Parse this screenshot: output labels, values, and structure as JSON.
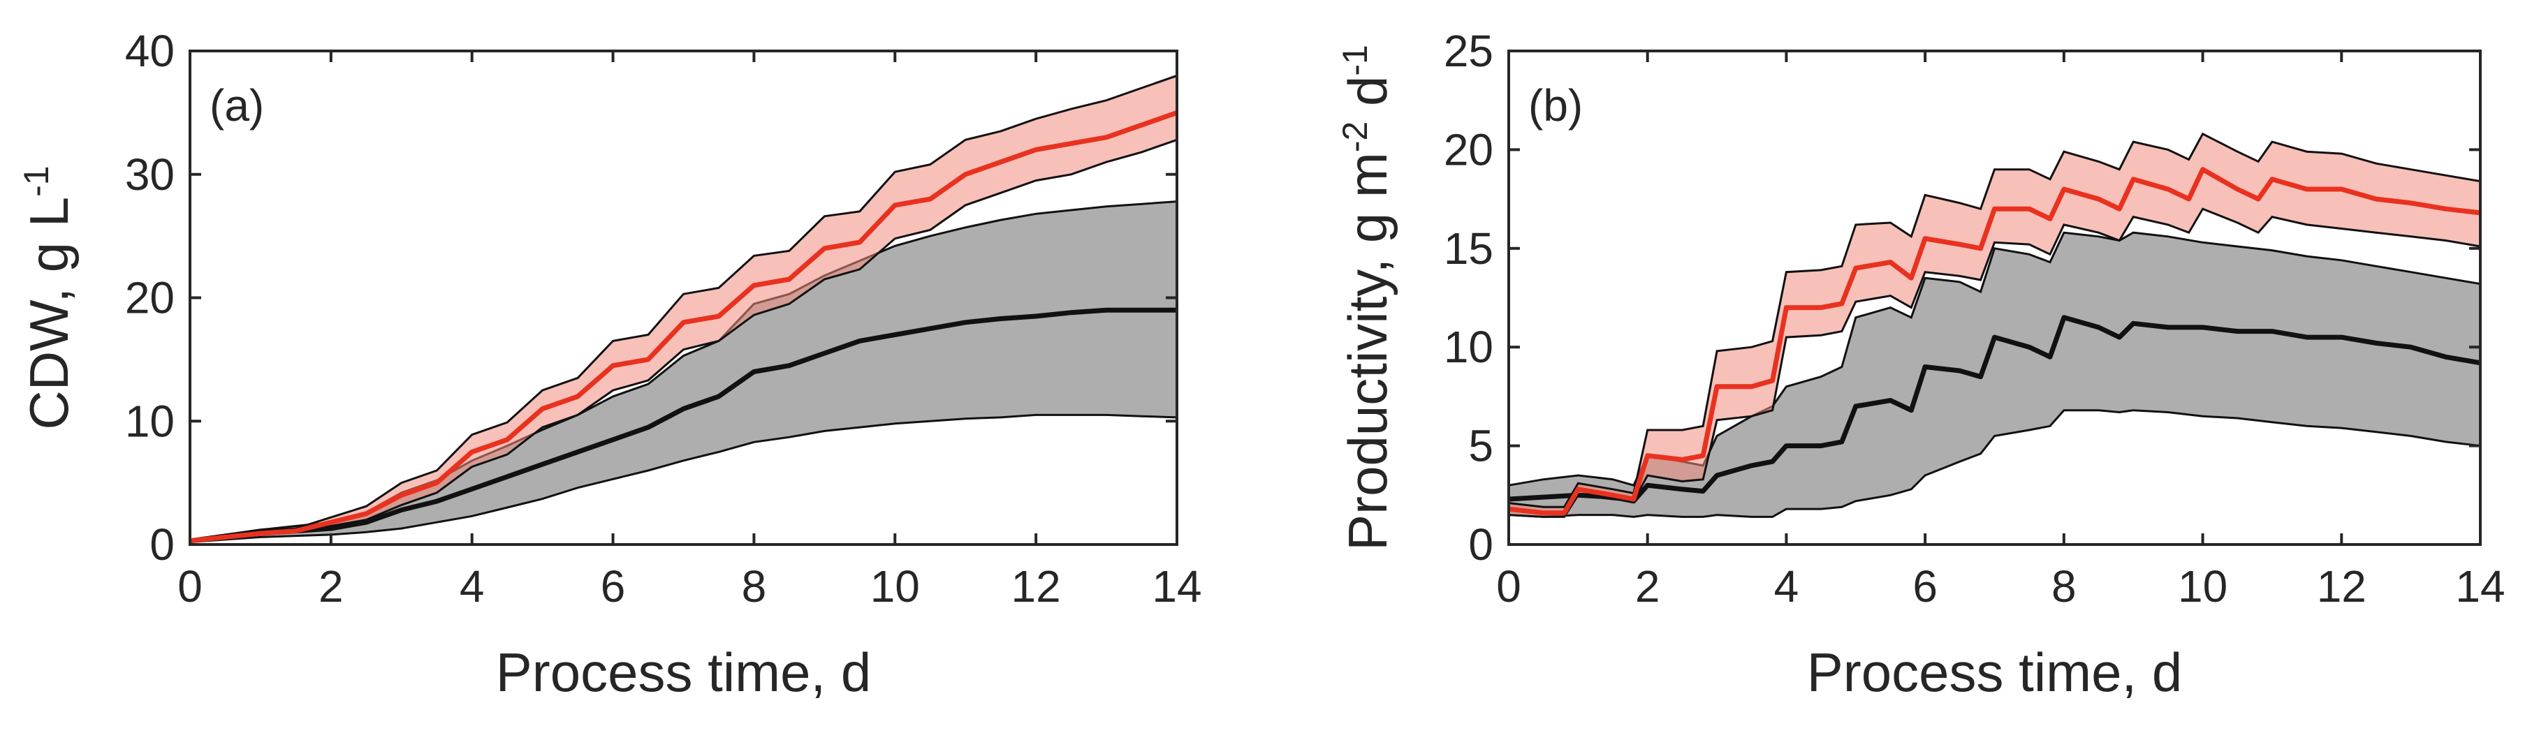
{
  "colors": {
    "red_line": "#e8321f",
    "red_band": "#f08d80",
    "black_line": "#111111",
    "grey_band": "#8c8c8c",
    "axis": "#262626"
  },
  "chart_data": [
    {
      "type": "line",
      "panel_label": "(a)",
      "xlabel": "Process time, d",
      "ylabel": {
        "base": "CDW, g L",
        "sup": "-1"
      },
      "xlim": [
        0,
        14
      ],
      "ylim": [
        0,
        40
      ],
      "x_ticks": [
        0,
        2,
        4,
        6,
        8,
        10,
        12,
        14
      ],
      "y_ticks": [
        0,
        10,
        20,
        30,
        40
      ],
      "grid": false,
      "legend": "none",
      "series": [
        {
          "name": "red",
          "x": [
            0,
            0.5,
            1,
            1.5,
            2,
            2.5,
            3,
            3.5,
            4,
            4.5,
            5,
            5.5,
            6,
            6.5,
            7,
            7.5,
            8,
            8.5,
            9,
            9.5,
            10,
            10.5,
            11,
            11.5,
            12,
            12.5,
            13,
            13.5,
            14
          ],
          "y": [
            0.3,
            0.6,
            0.9,
            1.1,
            1.8,
            2.5,
            4.0,
            5.0,
            7.5,
            8.5,
            11.0,
            12.0,
            14.5,
            15.0,
            18.0,
            18.5,
            21.0,
            21.5,
            24.0,
            24.5,
            27.5,
            28.0,
            30.0,
            31.0,
            32.0,
            32.5,
            33.0,
            34.0,
            35.0
          ],
          "lower": [
            0.2,
            0.5,
            0.8,
            1.0,
            1.5,
            2.0,
            3.2,
            4.2,
            6.3,
            7.3,
            9.5,
            10.5,
            12.5,
            13.3,
            15.8,
            16.5,
            18.6,
            19.5,
            21.5,
            22.3,
            24.8,
            25.5,
            27.5,
            28.5,
            29.5,
            30.0,
            31.0,
            31.8,
            32.8
          ],
          "upper": [
            0.4,
            0.7,
            1.1,
            1.3,
            2.2,
            3.1,
            5.0,
            6.0,
            8.9,
            9.9,
            12.5,
            13.5,
            16.5,
            17.0,
            20.3,
            20.8,
            23.4,
            23.8,
            26.6,
            27.0,
            30.2,
            30.8,
            32.8,
            33.5,
            34.5,
            35.3,
            36.0,
            37.0,
            38.0
          ]
        },
        {
          "name": "black",
          "x": [
            0,
            0.5,
            1,
            1.5,
            2,
            2.5,
            3,
            3.5,
            4,
            4.5,
            5,
            5.5,
            6,
            6.5,
            7,
            7.5,
            8,
            8.5,
            9,
            9.5,
            10,
            10.5,
            11,
            11.5,
            12,
            12.5,
            13,
            13.5,
            14
          ],
          "y": [
            0.3,
            0.6,
            0.9,
            1.1,
            1.3,
            1.8,
            2.8,
            3.5,
            4.5,
            5.5,
            6.5,
            7.5,
            8.5,
            9.5,
            11.0,
            12.0,
            14.0,
            14.5,
            15.5,
            16.5,
            17.0,
            17.5,
            18.0,
            18.3,
            18.5,
            18.8,
            19.0,
            19.0,
            19.0
          ],
          "lower": [
            0.2,
            0.4,
            0.6,
            0.7,
            0.8,
            1.0,
            1.3,
            1.8,
            2.3,
            3.0,
            3.7,
            4.6,
            5.3,
            6.0,
            6.8,
            7.5,
            8.3,
            8.7,
            9.2,
            9.5,
            9.8,
            10.0,
            10.2,
            10.3,
            10.5,
            10.5,
            10.5,
            10.4,
            10.3
          ],
          "upper": [
            0.4,
            0.8,
            1.2,
            1.5,
            1.8,
            2.6,
            4.2,
            5.2,
            6.8,
            8.0,
            9.3,
            10.5,
            12.0,
            13.0,
            15.3,
            16.5,
            19.5,
            20.3,
            21.8,
            23.0,
            24.2,
            25.0,
            25.7,
            26.3,
            26.8,
            27.1,
            27.4,
            27.6,
            27.8
          ]
        }
      ]
    },
    {
      "type": "line",
      "panel_label": "(b)",
      "xlabel": "Process time, d",
      "ylabel": {
        "base": "Productivity, g m",
        "sup1": "-2",
        "mid": " d",
        "sup2": "-1"
      },
      "xlim": [
        0,
        14
      ],
      "ylim": [
        0,
        25
      ],
      "x_ticks": [
        0,
        2,
        4,
        6,
        8,
        10,
        12,
        14
      ],
      "y_ticks": [
        0,
        5,
        10,
        15,
        20,
        25
      ],
      "grid": false,
      "legend": "none",
      "series": [
        {
          "name": "red",
          "x": [
            0,
            0.5,
            0.8,
            1,
            1.5,
            1.8,
            2,
            2.5,
            2.8,
            3,
            3.5,
            3.8,
            4,
            4.5,
            4.8,
            5,
            5.5,
            5.8,
            6,
            6.5,
            6.8,
            7,
            7.5,
            7.8,
            8,
            8.5,
            8.8,
            9,
            9.5,
            9.8,
            10,
            10.5,
            10.8,
            11,
            11.5,
            12,
            12.5,
            13,
            13.5,
            14
          ],
          "y": [
            1.8,
            1.6,
            1.6,
            2.8,
            2.5,
            2.3,
            4.5,
            4.3,
            4.5,
            8.0,
            8.0,
            8.3,
            12.0,
            12.0,
            12.2,
            14.0,
            14.3,
            13.5,
            15.5,
            15.2,
            15.0,
            17.0,
            17.0,
            16.5,
            18.0,
            17.5,
            17.0,
            18.5,
            18.0,
            17.5,
            19.0,
            18.0,
            17.5,
            18.5,
            18.0,
            18.0,
            17.5,
            17.3,
            17.0,
            16.8
          ],
          "lower": [
            1.5,
            1.4,
            1.4,
            2.5,
            2.3,
            2.2,
            3.5,
            3.2,
            3.3,
            6.3,
            6.5,
            6.8,
            10.5,
            10.6,
            10.8,
            12.3,
            12.6,
            12.0,
            13.8,
            13.6,
            13.4,
            15.3,
            15.2,
            14.7,
            16.2,
            15.8,
            15.4,
            16.6,
            16.2,
            15.8,
            17.0,
            16.3,
            15.8,
            16.6,
            16.2,
            16.0,
            15.8,
            15.6,
            15.4,
            15.1
          ],
          "upper": [
            2.1,
            1.9,
            1.9,
            3.1,
            2.8,
            2.6,
            5.8,
            5.8,
            6.0,
            9.8,
            10.0,
            10.3,
            13.8,
            13.9,
            14.1,
            16.2,
            16.3,
            15.6,
            17.7,
            17.3,
            17.0,
            19.0,
            19.0,
            18.5,
            19.9,
            19.4,
            19.0,
            20.4,
            20.0,
            19.5,
            20.8,
            19.9,
            19.4,
            20.4,
            19.9,
            19.8,
            19.3,
            19.0,
            18.7,
            18.4
          ]
        },
        {
          "name": "black",
          "x": [
            0,
            0.5,
            1,
            1.5,
            1.8,
            2,
            2.5,
            2.8,
            3,
            3.5,
            3.8,
            4,
            4.5,
            4.8,
            5,
            5.5,
            5.8,
            6,
            6.5,
            6.8,
            7,
            7.5,
            7.8,
            8,
            8.5,
            8.8,
            9,
            9.5,
            10,
            10.5,
            11,
            11.5,
            12,
            12.5,
            13,
            13.5,
            14
          ],
          "y": [
            2.3,
            2.4,
            2.5,
            2.4,
            2.2,
            3.0,
            2.8,
            2.7,
            3.5,
            4.0,
            4.2,
            5.0,
            5.0,
            5.2,
            7.0,
            7.3,
            6.8,
            9.0,
            8.8,
            8.5,
            10.5,
            10.0,
            9.5,
            11.5,
            11.0,
            10.5,
            11.2,
            11.0,
            11.0,
            10.8,
            10.8,
            10.5,
            10.5,
            10.2,
            10.0,
            9.5,
            9.2
          ],
          "lower": [
            1.5,
            1.4,
            1.5,
            1.5,
            1.4,
            1.5,
            1.4,
            1.4,
            1.5,
            1.4,
            1.4,
            1.8,
            1.8,
            1.9,
            2.2,
            2.5,
            2.8,
            3.5,
            4.2,
            4.6,
            5.5,
            5.8,
            6.0,
            6.8,
            6.8,
            6.7,
            6.8,
            6.7,
            6.5,
            6.4,
            6.2,
            6.0,
            5.9,
            5.7,
            5.5,
            5.2,
            5.0
          ],
          "upper": [
            3.0,
            3.3,
            3.5,
            3.3,
            3.0,
            4.5,
            4.2,
            4.0,
            5.5,
            6.5,
            7.0,
            8.0,
            8.5,
            9.0,
            11.5,
            12.0,
            11.5,
            13.5,
            13.3,
            12.8,
            15.0,
            14.7,
            14.3,
            15.8,
            15.6,
            15.4,
            15.8,
            15.6,
            15.3,
            15.1,
            14.9,
            14.6,
            14.4,
            14.1,
            13.8,
            13.5,
            13.2
          ]
        }
      ]
    }
  ]
}
